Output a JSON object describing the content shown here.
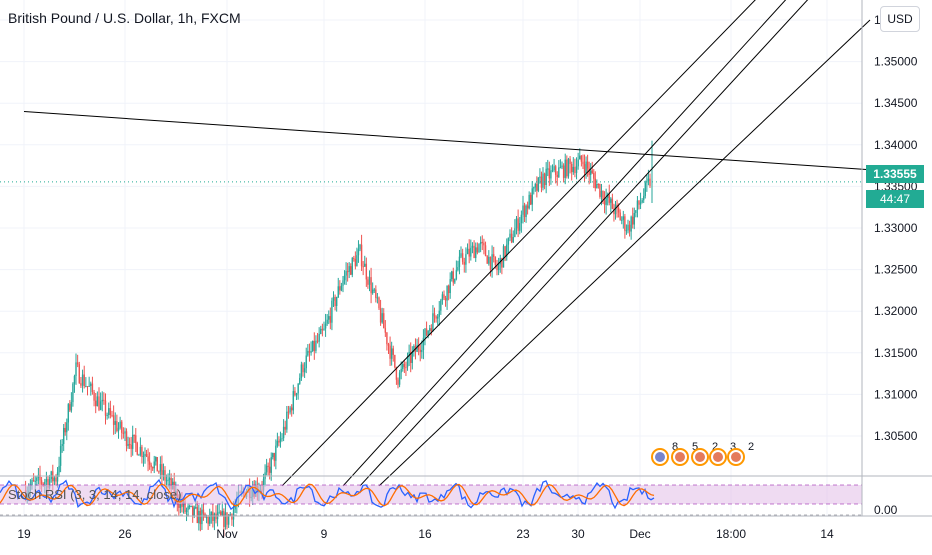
{
  "header": {
    "title": "British Pound / U.S. Dollar, 1h, FXCM",
    "currency": "USD"
  },
  "price_tags": {
    "current_price": "1.33555",
    "countdown": "44:47"
  },
  "indicator": {
    "label": "Stoch RSI (3, 3, 14, 14, close)"
  },
  "events": {
    "labels": [
      "8",
      "5",
      "2",
      "3",
      "2"
    ]
  },
  "colors": {
    "candle_up": "#26a69a",
    "candle_down": "#ef5350",
    "price_tag": "#22ab94",
    "stoch_k": "#2962ff",
    "stoch_d": "#ff6d00",
    "stoch_band": "#e1bee7",
    "trendline": "#000000",
    "grid": "#f0f3fa"
  },
  "chart_data": {
    "type": "candlestick",
    "symbol": "GBPUSD",
    "interval": "1h",
    "price_axis": {
      "ticks": [
        "1.35500",
        "1.35000",
        "1.34500",
        "1.34000",
        "1.33500",
        "1.33000",
        "1.32500",
        "1.32000",
        "1.31500",
        "1.31000",
        "1.30500"
      ],
      "range": [
        1.2995,
        1.3565
      ]
    },
    "time_axis": {
      "ticks": [
        "19",
        "26",
        "Nov",
        "9",
        "16",
        "23",
        "30",
        "Dec",
        "18:00",
        "14"
      ]
    },
    "indicator_axis": {
      "ticks": [
        "0.00"
      ]
    },
    "last_price": 1.33555,
    "price_path_daily": [
      {
        "date": "Oct 19",
        "close": 1.2985
      },
      {
        "date": "Oct 20",
        "close": 1.2995
      },
      {
        "date": "Oct 21",
        "close": 1.3
      },
      {
        "date": "Oct 22",
        "close": 1.313
      },
      {
        "date": "Oct 23",
        "close": 1.309
      },
      {
        "date": "Oct 26",
        "close": 1.305
      },
      {
        "date": "Oct 27",
        "close": 1.303
      },
      {
        "date": "Oct 28",
        "close": 1.3
      },
      {
        "date": "Oct 29",
        "close": 1.296
      },
      {
        "date": "Oct 30",
        "close": 1.295
      },
      {
        "date": "Nov 2",
        "close": 1.295
      },
      {
        "date": "Nov 3",
        "close": 1.2985
      },
      {
        "date": "Nov 4",
        "close": 1.299
      },
      {
        "date": "Nov 5",
        "close": 1.305
      },
      {
        "date": "Nov 6",
        "close": 1.3135
      },
      {
        "date": "Nov 9",
        "close": 1.3175
      },
      {
        "date": "Nov 10",
        "close": 1.324
      },
      {
        "date": "Nov 11",
        "close": 1.327
      },
      {
        "date": "Nov 12",
        "close": 1.32
      },
      {
        "date": "Nov 13",
        "close": 1.312
      },
      {
        "date": "Nov 16",
        "close": 1.317
      },
      {
        "date": "Nov 17",
        "close": 1.322
      },
      {
        "date": "Nov 18",
        "close": 1.326
      },
      {
        "date": "Nov 19",
        "close": 1.328
      },
      {
        "date": "Nov 20",
        "close": 1.325
      },
      {
        "date": "Nov 23",
        "close": 1.332
      },
      {
        "date": "Nov 24",
        "close": 1.336
      },
      {
        "date": "Nov 25",
        "close": 1.337
      },
      {
        "date": "Nov 26",
        "close": 1.338
      },
      {
        "date": "Nov 27",
        "close": 1.334
      },
      {
        "date": "Nov 30",
        "close": 1.33
      },
      {
        "date": "Dec 1",
        "close": 1.3356
      }
    ],
    "drawings": [
      {
        "kind": "trendline",
        "from": {
          "date": "Oct 19",
          "price": 1.344
        },
        "to": {
          "date": "Dec 14",
          "price": 1.337
        }
      },
      {
        "kind": "channel_line",
        "from": {
          "date": "Nov 5",
          "price": 1.299
        },
        "to": {
          "date": "Dec 9",
          "price": 1.358
        }
      },
      {
        "kind": "channel_line",
        "from": {
          "date": "Nov 10",
          "price": 1.299
        },
        "to": {
          "date": "Dec 11",
          "price": 1.358
        }
      },
      {
        "kind": "channel_line",
        "from": {
          "date": "Nov 11",
          "price": 1.299
        },
        "to": {
          "date": "Dec 12",
          "price": 1.358
        }
      },
      {
        "kind": "channel_line",
        "from": {
          "date": "Nov 12",
          "price": 1.299
        },
        "to": {
          "date": "Dec 14",
          "price": 1.355
        }
      }
    ],
    "stoch_rsi": {
      "k": 3,
      "d": 3,
      "rsi_length": 14,
      "stoch_length": 14,
      "source": "close",
      "upper": 80,
      "lower": 20
    }
  }
}
